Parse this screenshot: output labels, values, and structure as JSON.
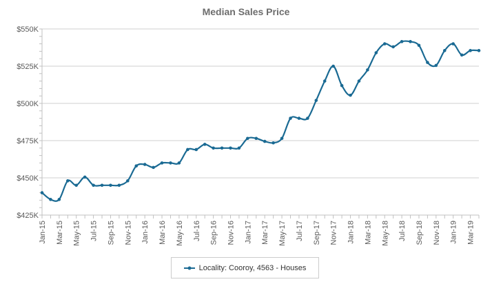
{
  "chart_data": {
    "type": "line",
    "title": "Median Sales Price",
    "xlabel": "",
    "ylabel": "",
    "ylim": [
      425000,
      550000
    ],
    "y_ticks": [
      {
        "value": 425000,
        "label": "$425K"
      },
      {
        "value": 450000,
        "label": "$450K"
      },
      {
        "value": 475000,
        "label": "$475K"
      },
      {
        "value": 500000,
        "label": "$500K"
      },
      {
        "value": 525000,
        "label": "$525K"
      },
      {
        "value": 550000,
        "label": "$550K"
      }
    ],
    "x_tick_labels": [
      "Jan-15",
      "Mar-15",
      "May-15",
      "Jul-15",
      "Sep-15",
      "Nov-15",
      "Jan-16",
      "Mar-16",
      "May-16",
      "Jul-16",
      "Sep-16",
      "Nov-16",
      "Jan-17",
      "Mar-17",
      "May-17",
      "Jul-17",
      "Sep-17",
      "Nov-17",
      "Jan-18",
      "Mar-18",
      "May-18",
      "Jul-18",
      "Sep-18",
      "Nov-18",
      "Jan-19",
      "Mar-19"
    ],
    "x": [
      "Jan-15",
      "Feb-15",
      "Mar-15",
      "Apr-15",
      "May-15",
      "Jun-15",
      "Jul-15",
      "Aug-15",
      "Sep-15",
      "Oct-15",
      "Nov-15",
      "Dec-15",
      "Jan-16",
      "Feb-16",
      "Mar-16",
      "Apr-16",
      "May-16",
      "Jun-16",
      "Jul-16",
      "Aug-16",
      "Sep-16",
      "Oct-16",
      "Nov-16",
      "Dec-16",
      "Jan-17",
      "Feb-17",
      "Mar-17",
      "Apr-17",
      "May-17",
      "Jun-17",
      "Jul-17",
      "Aug-17",
      "Sep-17",
      "Oct-17",
      "Nov-17",
      "Dec-17",
      "Jan-18",
      "Feb-18",
      "Mar-18",
      "Apr-18",
      "May-18",
      "Jun-18",
      "Jul-18",
      "Aug-18",
      "Sep-18",
      "Oct-18",
      "Nov-18",
      "Dec-18",
      "Jan-19",
      "Feb-19",
      "Mar-19",
      "Apr-19"
    ],
    "series": [
      {
        "name": "Locality: Cooroy, 4563 - Houses",
        "color": "#1a6a93",
        "values": [
          440000,
          435500,
          435500,
          448000,
          445000,
          450500,
          445000,
          445000,
          445000,
          445000,
          448000,
          458000,
          459000,
          457000,
          460000,
          460000,
          460000,
          469000,
          469000,
          472500,
          470000,
          470000,
          470000,
          470000,
          476500,
          476500,
          474500,
          473500,
          476500,
          490000,
          490000,
          490000,
          502000,
          515000,
          525000,
          512000,
          505500,
          515000,
          522500,
          534000,
          540000,
          538000,
          541500,
          541500,
          539000,
          527500,
          525500,
          535500,
          540000,
          532500,
          535500,
          535500
        ]
      }
    ],
    "grid": true,
    "legend_position": "bottom-center"
  }
}
